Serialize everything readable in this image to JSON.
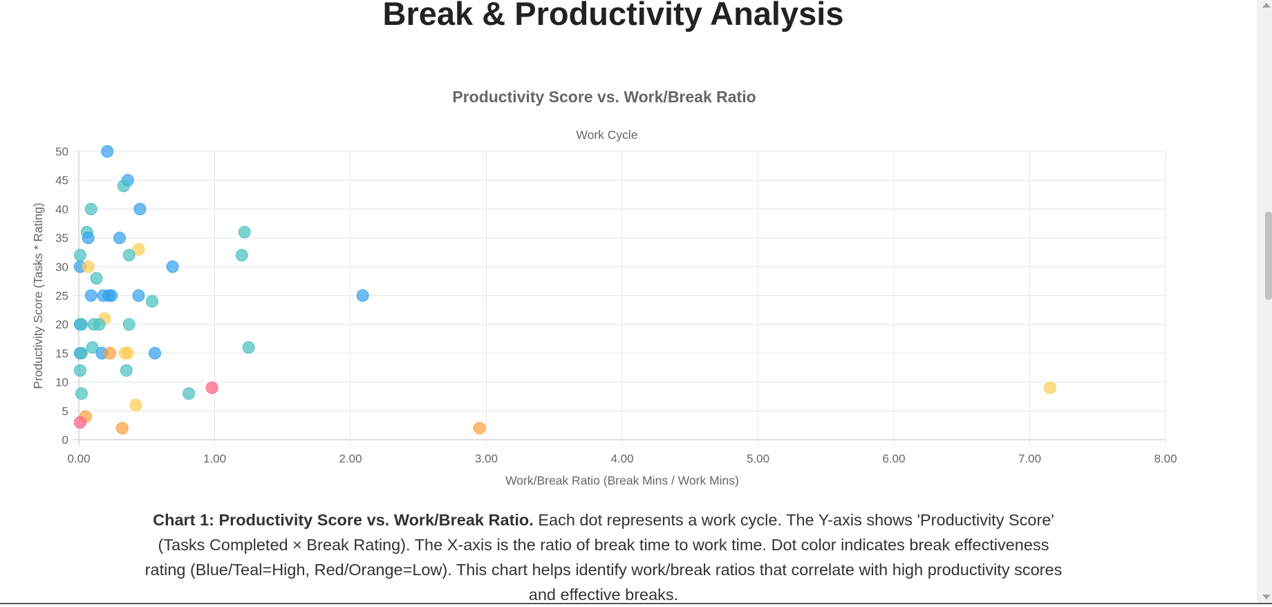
{
  "page": {
    "title": "Break & Productivity Analysis"
  },
  "caption": {
    "bold": "Chart 1: Productivity Score vs. Work/Break Ratio.",
    "text": " Each dot represents a work cycle. The Y-axis shows 'Productivity Score' (Tasks Completed × Break Rating). The X-axis is the ratio of break time to work time. Dot color indicates break effectiveness rating (Blue/Teal=High, Red/Orange=Low). This chart helps identify work/break ratios that correlate with high productivity scores and effective breaks."
  },
  "chart_data": {
    "type": "scatter",
    "title": "Productivity Score vs. Work/Break Ratio",
    "legend_label": "Work Cycle",
    "xlabel": "Work/Break Ratio (Break Mins / Work Mins)",
    "ylabel": "Productivity Score (Tasks * Rating)",
    "xlim": [
      0,
      8
    ],
    "ylim": [
      0,
      50
    ],
    "x_ticks": [
      "0.00",
      "1.00",
      "2.00",
      "3.00",
      "4.00",
      "5.00",
      "6.00",
      "7.00",
      "8.00"
    ],
    "y_ticks": [
      "0",
      "5",
      "10",
      "15",
      "20",
      "25",
      "30",
      "35",
      "40",
      "45",
      "50"
    ],
    "grid": true,
    "colors": {
      "blue": "#36a2eb",
      "teal": "#4bc0c0",
      "yellow": "#ffcd56",
      "orange": "#ff9f40",
      "red": "#ff6384"
    },
    "points": [
      {
        "x": 0.21,
        "y": 50,
        "c": "blue"
      },
      {
        "x": 0.36,
        "y": 45,
        "c": "blue"
      },
      {
        "x": 0.33,
        "y": 44,
        "c": "teal"
      },
      {
        "x": 0.09,
        "y": 40,
        "c": "teal"
      },
      {
        "x": 0.45,
        "y": 40,
        "c": "blue"
      },
      {
        "x": 0.06,
        "y": 36,
        "c": "teal"
      },
      {
        "x": 1.22,
        "y": 36,
        "c": "teal"
      },
      {
        "x": 0.07,
        "y": 35,
        "c": "blue"
      },
      {
        "x": 0.3,
        "y": 35,
        "c": "blue"
      },
      {
        "x": 0.44,
        "y": 33,
        "c": "yellow"
      },
      {
        "x": 0.01,
        "y": 32,
        "c": "teal"
      },
      {
        "x": 0.37,
        "y": 32,
        "c": "teal"
      },
      {
        "x": 1.2,
        "y": 32,
        "c": "teal"
      },
      {
        "x": 0.01,
        "y": 30,
        "c": "blue"
      },
      {
        "x": 0.07,
        "y": 30,
        "c": "yellow"
      },
      {
        "x": 0.69,
        "y": 30,
        "c": "blue"
      },
      {
        "x": 0.13,
        "y": 28,
        "c": "teal"
      },
      {
        "x": 0.09,
        "y": 25,
        "c": "blue"
      },
      {
        "x": 0.18,
        "y": 25,
        "c": "blue"
      },
      {
        "x": 0.22,
        "y": 25,
        "c": "blue"
      },
      {
        "x": 0.24,
        "y": 25,
        "c": "blue"
      },
      {
        "x": 0.44,
        "y": 25,
        "c": "blue"
      },
      {
        "x": 2.09,
        "y": 25,
        "c": "blue"
      },
      {
        "x": 0.54,
        "y": 24,
        "c": "teal"
      },
      {
        "x": 0.19,
        "y": 21,
        "c": "yellow"
      },
      {
        "x": 0.01,
        "y": 20,
        "c": "blue"
      },
      {
        "x": 0.02,
        "y": 20,
        "c": "teal"
      },
      {
        "x": 0.11,
        "y": 20,
        "c": "teal"
      },
      {
        "x": 0.15,
        "y": 20,
        "c": "teal"
      },
      {
        "x": 0.37,
        "y": 20,
        "c": "teal"
      },
      {
        "x": 0.1,
        "y": 16,
        "c": "teal"
      },
      {
        "x": 1.25,
        "y": 16,
        "c": "teal"
      },
      {
        "x": 0.01,
        "y": 15,
        "c": "blue"
      },
      {
        "x": 0.02,
        "y": 15,
        "c": "teal"
      },
      {
        "x": 0.17,
        "y": 15,
        "c": "blue"
      },
      {
        "x": 0.23,
        "y": 15,
        "c": "orange"
      },
      {
        "x": 0.34,
        "y": 15,
        "c": "yellow"
      },
      {
        "x": 0.36,
        "y": 15,
        "c": "yellow"
      },
      {
        "x": 0.56,
        "y": 15,
        "c": "blue"
      },
      {
        "x": 0.01,
        "y": 12,
        "c": "teal"
      },
      {
        "x": 0.35,
        "y": 12,
        "c": "teal"
      },
      {
        "x": 0.98,
        "y": 9,
        "c": "red"
      },
      {
        "x": 7.15,
        "y": 9,
        "c": "yellow"
      },
      {
        "x": 0.02,
        "y": 8,
        "c": "teal"
      },
      {
        "x": 0.81,
        "y": 8,
        "c": "teal"
      },
      {
        "x": 0.42,
        "y": 6,
        "c": "yellow"
      },
      {
        "x": 0.05,
        "y": 4,
        "c": "orange"
      },
      {
        "x": 0.01,
        "y": 3,
        "c": "red"
      },
      {
        "x": 0.32,
        "y": 2,
        "c": "orange"
      },
      {
        "x": 2.95,
        "y": 2,
        "c": "orange"
      }
    ]
  }
}
